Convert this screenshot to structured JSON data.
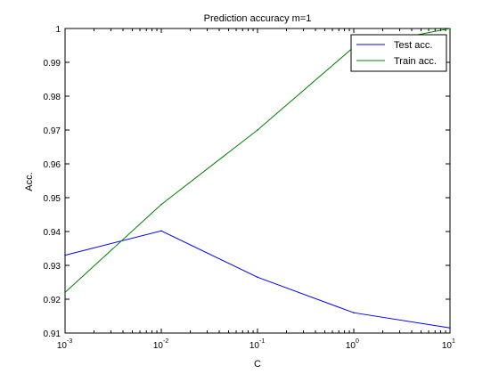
{
  "chart_data": {
    "type": "line",
    "title": "Prediction accuracy m=1",
    "xlabel": "C",
    "ylabel": "Acc.",
    "xscale": "log",
    "xlim": [
      0.001,
      10
    ],
    "ylim": [
      0.91,
      1.0
    ],
    "grid": false,
    "legend_position": "top-right",
    "x_ticks": [
      {
        "base": "10",
        "exp": "-3",
        "value": 0.001
      },
      {
        "base": "10",
        "exp": "-2",
        "value": 0.01
      },
      {
        "base": "10",
        "exp": "-1",
        "value": 0.1
      },
      {
        "base": "10",
        "exp": "0",
        "value": 1
      },
      {
        "base": "10",
        "exp": "1",
        "value": 10
      }
    ],
    "y_ticks": [
      {
        "label": "0.91",
        "value": 0.91
      },
      {
        "label": "0.92",
        "value": 0.92
      },
      {
        "label": "0.93",
        "value": 0.93
      },
      {
        "label": "0.94",
        "value": 0.94
      },
      {
        "label": "0.95",
        "value": 0.95
      },
      {
        "label": "0.96",
        "value": 0.96
      },
      {
        "label": "0.97",
        "value": 0.97
      },
      {
        "label": "0.98",
        "value": 0.98
      },
      {
        "label": "0.99",
        "value": 0.99
      },
      {
        "label": "1",
        "value": 1.0
      }
    ],
    "x": [
      0.001,
      0.01,
      0.1,
      1,
      10
    ],
    "series": [
      {
        "name": "Test acc.",
        "color": "#0000ff",
        "values": [
          0.933,
          0.9402,
          0.9265,
          0.916,
          0.9115
        ]
      },
      {
        "name": "Train acc.",
        "color": "#008000",
        "values": [
          0.922,
          0.948,
          0.97,
          0.9945,
          1.0
        ]
      }
    ]
  }
}
